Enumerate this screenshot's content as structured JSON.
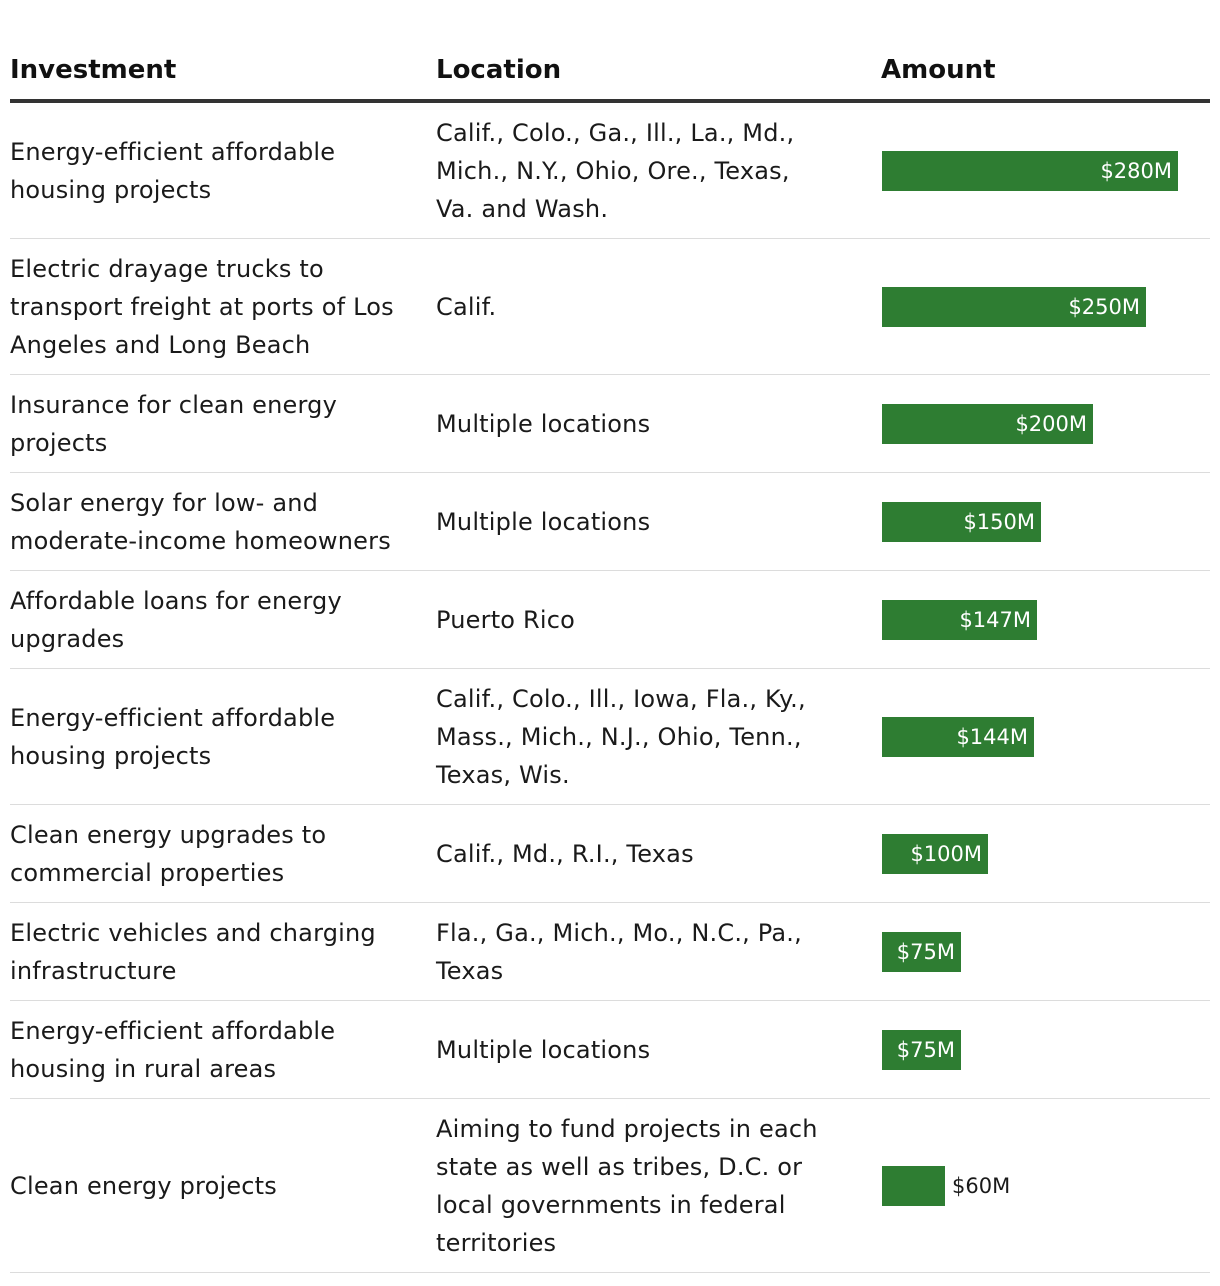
{
  "chart_data": {
    "type": "bar",
    "orientation": "horizontal",
    "columns": [
      "Investment",
      "Location",
      "Amount"
    ],
    "rows": [
      {
        "investment": "Energy-efficient affordable housing projects",
        "location": "Calif., Colo., Ga., Ill., La., Md., Mich., N.Y., Ohio, Ore., Texas, Va. and Wash.",
        "amount": 280,
        "label": "$280M"
      },
      {
        "investment": "Electric drayage trucks to transport freight at ports of Los Angeles and Long Beach",
        "location": "Calif.",
        "amount": 250,
        "label": "$250M"
      },
      {
        "investment": "Insurance for clean energy projects",
        "location": "Multiple locations",
        "amount": 200,
        "label": "$200M"
      },
      {
        "investment": "Solar energy for low- and moderate-income homeowners",
        "location": "Multiple locations",
        "amount": 150,
        "label": "$150M"
      },
      {
        "investment": "Affordable loans for energy upgrades",
        "location": "Puerto Rico",
        "amount": 147,
        "label": "$147M"
      },
      {
        "investment": "Energy-efficient affordable housing projects",
        "location": "Calif., Colo., Ill., Iowa, Fla., Ky., Mass., Mich., N.J., Ohio, Tenn., Texas, Wis.",
        "amount": 144,
        "label": "$144M"
      },
      {
        "investment": "Clean energy upgrades to commercial properties",
        "location": "Calif., Md., R.I., Texas",
        "amount": 100,
        "label": "$100M"
      },
      {
        "investment": "Electric vehicles and charging infrastructure",
        "location": "Fla., Ga., Mich., Mo., N.C., Pa., Texas",
        "amount": 75,
        "label": "$75M"
      },
      {
        "investment": "Energy-efficient affordable housing in rural areas",
        "location": "Multiple locations",
        "amount": 75,
        "label": "$75M"
      },
      {
        "investment": "Clean energy projects",
        "location": "Aiming to fund projects in each state as well as tribes, D.C. or local governments in federal territories",
        "amount": 60,
        "label": "$60M"
      }
    ],
    "xlim": [
      0,
      280
    ],
    "bar_color": "#2e7d32",
    "grid": false
  }
}
